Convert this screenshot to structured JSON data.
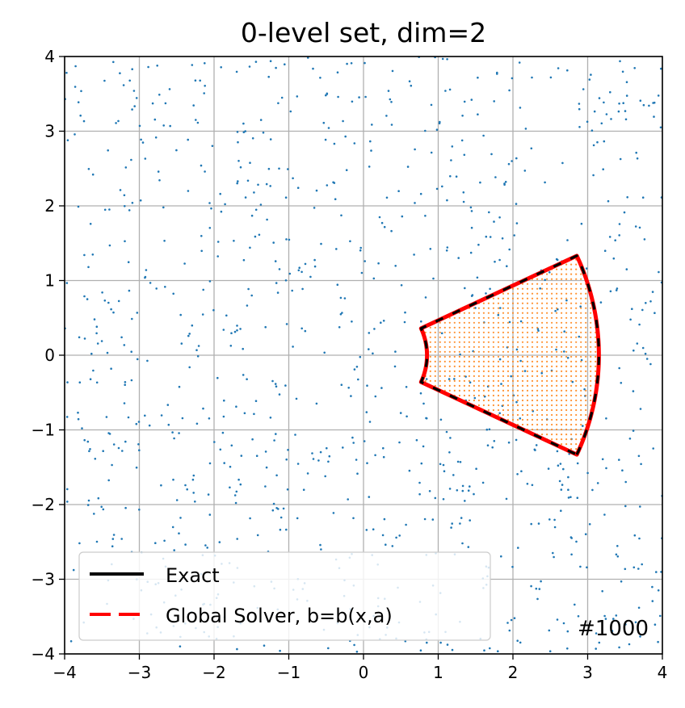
{
  "chart_data": {
    "type": "scatter",
    "title": "0-level set, dim=2",
    "xlabel": "",
    "ylabel": "",
    "xlim": [
      -4,
      4
    ],
    "ylim": [
      -4,
      4
    ],
    "xticks": [
      -4,
      -3,
      -2,
      -1,
      0,
      1,
      2,
      3,
      4
    ],
    "yticks": [
      -4,
      -3,
      -2,
      -1,
      0,
      1,
      2,
      3,
      4
    ],
    "xtick_labels": [
      "−4",
      "−3",
      "−2",
      "−1",
      "0",
      "1",
      "2",
      "3",
      "4"
    ],
    "ytick_labels": [
      "−4",
      "−3",
      "−2",
      "−1",
      "0",
      "1",
      "2",
      "3",
      "4"
    ],
    "grid": true,
    "legend_position": "bottom-left",
    "annotation": "#1000",
    "region": {
      "shape": "annular-sector",
      "inner_radius": 0.85,
      "outer_radius": 3.15,
      "half_angle_deg": 25,
      "center": [
        0,
        0
      ]
    },
    "series": [
      {
        "name": "Exact",
        "type": "line",
        "color": "#000000",
        "style": "solid"
      },
      {
        "name": "Global Solver, b=b(x,a)",
        "type": "line",
        "color": "#ff0000",
        "style": "dashed"
      },
      {
        "type": "scatter",
        "color": "#1f77b4",
        "description_count": 1000,
        "distribution": "uniform over [-4,4]x[-4,4]"
      },
      {
        "type": "scatter",
        "color": "#ff7f0e",
        "distribution": "grid points inside region"
      }
    ]
  },
  "colors": {
    "scatter_blue": "#1f77b4",
    "inside_orange": "#ff7f0e",
    "exact_line": "#000000",
    "solver_line": "#ff0000",
    "grid": "#b0b0b0"
  }
}
